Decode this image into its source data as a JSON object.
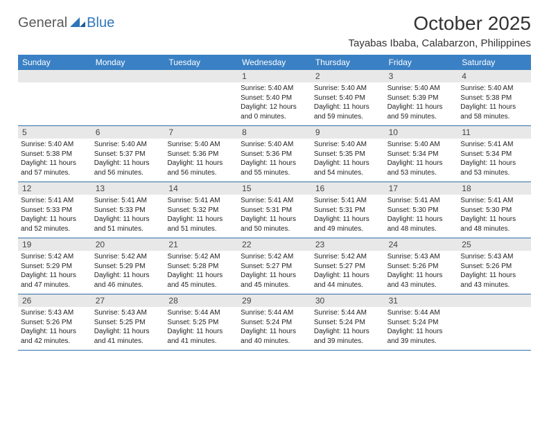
{
  "logo": {
    "general": "General",
    "blue": "Blue"
  },
  "title": "October 2025",
  "location": "Tayabas Ibaba, Calabarzon, Philippines",
  "colors": {
    "header_bg": "#3a80c4",
    "header_text": "#ffffff",
    "daynum_bg": "#e8e8e8",
    "border": "#2f6ea8",
    "logo_gray": "#5a5a5a",
    "logo_blue": "#2f76ba"
  },
  "dayNames": [
    "Sunday",
    "Monday",
    "Tuesday",
    "Wednesday",
    "Thursday",
    "Friday",
    "Saturday"
  ],
  "weeks": [
    [
      {
        "n": "",
        "sr": "",
        "ss": "",
        "dl": ""
      },
      {
        "n": "",
        "sr": "",
        "ss": "",
        "dl": ""
      },
      {
        "n": "",
        "sr": "",
        "ss": "",
        "dl": ""
      },
      {
        "n": "1",
        "sr": "Sunrise: 5:40 AM",
        "ss": "Sunset: 5:40 PM",
        "dl": "Daylight: 12 hours and 0 minutes."
      },
      {
        "n": "2",
        "sr": "Sunrise: 5:40 AM",
        "ss": "Sunset: 5:40 PM",
        "dl": "Daylight: 11 hours and 59 minutes."
      },
      {
        "n": "3",
        "sr": "Sunrise: 5:40 AM",
        "ss": "Sunset: 5:39 PM",
        "dl": "Daylight: 11 hours and 59 minutes."
      },
      {
        "n": "4",
        "sr": "Sunrise: 5:40 AM",
        "ss": "Sunset: 5:38 PM",
        "dl": "Daylight: 11 hours and 58 minutes."
      }
    ],
    [
      {
        "n": "5",
        "sr": "Sunrise: 5:40 AM",
        "ss": "Sunset: 5:38 PM",
        "dl": "Daylight: 11 hours and 57 minutes."
      },
      {
        "n": "6",
        "sr": "Sunrise: 5:40 AM",
        "ss": "Sunset: 5:37 PM",
        "dl": "Daylight: 11 hours and 56 minutes."
      },
      {
        "n": "7",
        "sr": "Sunrise: 5:40 AM",
        "ss": "Sunset: 5:36 PM",
        "dl": "Daylight: 11 hours and 56 minutes."
      },
      {
        "n": "8",
        "sr": "Sunrise: 5:40 AM",
        "ss": "Sunset: 5:36 PM",
        "dl": "Daylight: 11 hours and 55 minutes."
      },
      {
        "n": "9",
        "sr": "Sunrise: 5:40 AM",
        "ss": "Sunset: 5:35 PM",
        "dl": "Daylight: 11 hours and 54 minutes."
      },
      {
        "n": "10",
        "sr": "Sunrise: 5:40 AM",
        "ss": "Sunset: 5:34 PM",
        "dl": "Daylight: 11 hours and 53 minutes."
      },
      {
        "n": "11",
        "sr": "Sunrise: 5:41 AM",
        "ss": "Sunset: 5:34 PM",
        "dl": "Daylight: 11 hours and 53 minutes."
      }
    ],
    [
      {
        "n": "12",
        "sr": "Sunrise: 5:41 AM",
        "ss": "Sunset: 5:33 PM",
        "dl": "Daylight: 11 hours and 52 minutes."
      },
      {
        "n": "13",
        "sr": "Sunrise: 5:41 AM",
        "ss": "Sunset: 5:33 PM",
        "dl": "Daylight: 11 hours and 51 minutes."
      },
      {
        "n": "14",
        "sr": "Sunrise: 5:41 AM",
        "ss": "Sunset: 5:32 PM",
        "dl": "Daylight: 11 hours and 51 minutes."
      },
      {
        "n": "15",
        "sr": "Sunrise: 5:41 AM",
        "ss": "Sunset: 5:31 PM",
        "dl": "Daylight: 11 hours and 50 minutes."
      },
      {
        "n": "16",
        "sr": "Sunrise: 5:41 AM",
        "ss": "Sunset: 5:31 PM",
        "dl": "Daylight: 11 hours and 49 minutes."
      },
      {
        "n": "17",
        "sr": "Sunrise: 5:41 AM",
        "ss": "Sunset: 5:30 PM",
        "dl": "Daylight: 11 hours and 48 minutes."
      },
      {
        "n": "18",
        "sr": "Sunrise: 5:41 AM",
        "ss": "Sunset: 5:30 PM",
        "dl": "Daylight: 11 hours and 48 minutes."
      }
    ],
    [
      {
        "n": "19",
        "sr": "Sunrise: 5:42 AM",
        "ss": "Sunset: 5:29 PM",
        "dl": "Daylight: 11 hours and 47 minutes."
      },
      {
        "n": "20",
        "sr": "Sunrise: 5:42 AM",
        "ss": "Sunset: 5:29 PM",
        "dl": "Daylight: 11 hours and 46 minutes."
      },
      {
        "n": "21",
        "sr": "Sunrise: 5:42 AM",
        "ss": "Sunset: 5:28 PM",
        "dl": "Daylight: 11 hours and 45 minutes."
      },
      {
        "n": "22",
        "sr": "Sunrise: 5:42 AM",
        "ss": "Sunset: 5:27 PM",
        "dl": "Daylight: 11 hours and 45 minutes."
      },
      {
        "n": "23",
        "sr": "Sunrise: 5:42 AM",
        "ss": "Sunset: 5:27 PM",
        "dl": "Daylight: 11 hours and 44 minutes."
      },
      {
        "n": "24",
        "sr": "Sunrise: 5:43 AM",
        "ss": "Sunset: 5:26 PM",
        "dl": "Daylight: 11 hours and 43 minutes."
      },
      {
        "n": "25",
        "sr": "Sunrise: 5:43 AM",
        "ss": "Sunset: 5:26 PM",
        "dl": "Daylight: 11 hours and 43 minutes."
      }
    ],
    [
      {
        "n": "26",
        "sr": "Sunrise: 5:43 AM",
        "ss": "Sunset: 5:26 PM",
        "dl": "Daylight: 11 hours and 42 minutes."
      },
      {
        "n": "27",
        "sr": "Sunrise: 5:43 AM",
        "ss": "Sunset: 5:25 PM",
        "dl": "Daylight: 11 hours and 41 minutes."
      },
      {
        "n": "28",
        "sr": "Sunrise: 5:44 AM",
        "ss": "Sunset: 5:25 PM",
        "dl": "Daylight: 11 hours and 41 minutes."
      },
      {
        "n": "29",
        "sr": "Sunrise: 5:44 AM",
        "ss": "Sunset: 5:24 PM",
        "dl": "Daylight: 11 hours and 40 minutes."
      },
      {
        "n": "30",
        "sr": "Sunrise: 5:44 AM",
        "ss": "Sunset: 5:24 PM",
        "dl": "Daylight: 11 hours and 39 minutes."
      },
      {
        "n": "31",
        "sr": "Sunrise: 5:44 AM",
        "ss": "Sunset: 5:24 PM",
        "dl": "Daylight: 11 hours and 39 minutes."
      },
      {
        "n": "",
        "sr": "",
        "ss": "",
        "dl": ""
      }
    ]
  ]
}
